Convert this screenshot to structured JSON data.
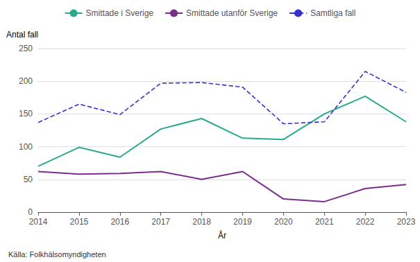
{
  "chart_data": {
    "type": "line",
    "ylabel": "Antal fall",
    "xlabel": "År",
    "annotations": [
      "Källa: Folkhälsomyndigheten"
    ],
    "categories": [
      "2014",
      "2015",
      "2016",
      "2017",
      "2018",
      "2019",
      "2020",
      "2021",
      "2022",
      "2023"
    ],
    "series": [
      {
        "name": "Smittade i Sverige",
        "color": "#2aaa8a",
        "line_style": "solid",
        "values": [
          70,
          99,
          84,
          127,
          143,
          113,
          111,
          150,
          177,
          138
        ]
      },
      {
        "name": "Smittade utanför Sverige",
        "color": "#7b2d8b",
        "line_style": "solid",
        "values": [
          62,
          58,
          59,
          62,
          50,
          62,
          20,
          16,
          36,
          42
        ]
      },
      {
        "name": "Samtliga fall",
        "color": "#3333cc",
        "line_style": "dashed",
        "values": [
          137,
          165,
          149,
          197,
          198,
          191,
          135,
          138,
          215,
          183
        ]
      }
    ],
    "ylim": [
      0,
      250
    ],
    "yticks": [
      0,
      50,
      100,
      150,
      200,
      250
    ],
    "grid": true,
    "legend": "top"
  }
}
